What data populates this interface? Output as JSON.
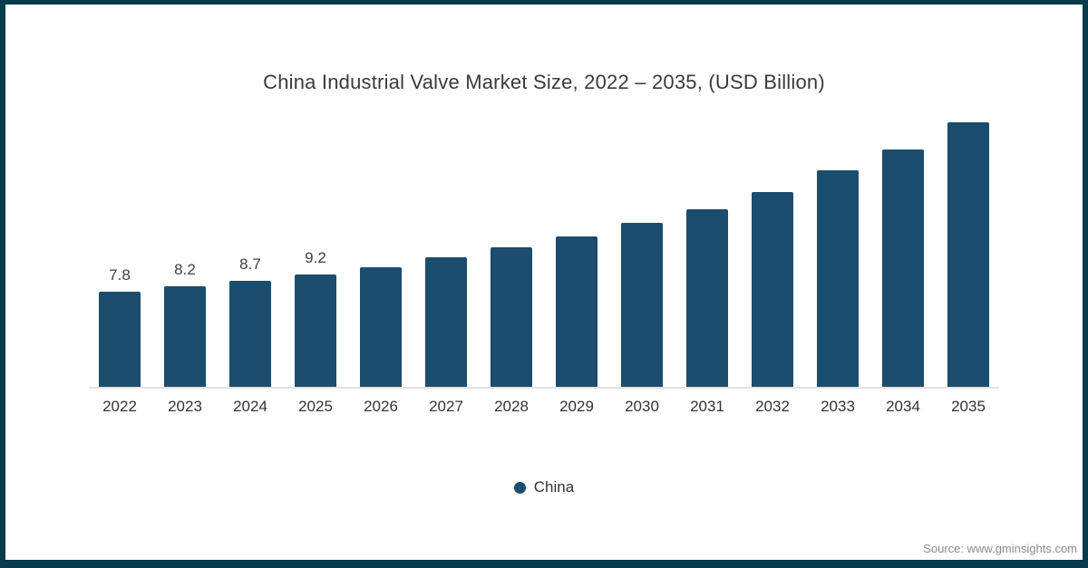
{
  "frame": {
    "border_color": "#083b4c",
    "background": "#ffffff"
  },
  "chart_data": {
    "type": "bar",
    "title": "China Industrial Valve Market Size, 2022 – 2035, (USD Billion)",
    "xlabel": "",
    "ylabel": "",
    "categories": [
      "2022",
      "2023",
      "2024",
      "2025",
      "2026",
      "2027",
      "2028",
      "2029",
      "2030",
      "2031",
      "2032",
      "2033",
      "2034",
      "2035"
    ],
    "values": [
      7.8,
      8.2,
      8.7,
      9.2,
      9.8,
      10.6,
      11.4,
      12.3,
      13.4,
      14.5,
      15.9,
      17.7,
      19.4,
      21.6
    ],
    "data_labels": [
      "7.8",
      "8.2",
      "8.7",
      "9.2",
      null,
      null,
      null,
      null,
      null,
      null,
      null,
      null,
      null,
      null
    ],
    "ylim": [
      0,
      22.5
    ],
    "grid": false,
    "bar_color": "#1b4d6e",
    "axis_line_color": "#e2e2e2",
    "legend": {
      "position": "bottom-center",
      "entries": [
        {
          "label": "China",
          "color": "#1b4d6e"
        }
      ]
    }
  },
  "footer": {
    "source_text": "Source: www.gminsights.com"
  }
}
